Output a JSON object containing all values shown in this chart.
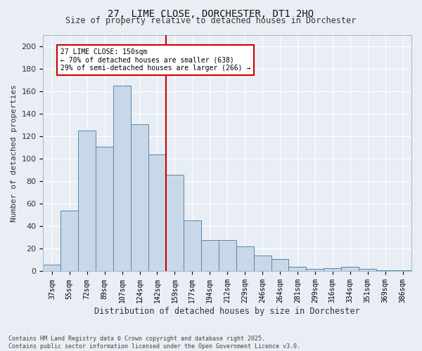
{
  "title": "27, LIME CLOSE, DORCHESTER, DT1 2HQ",
  "subtitle": "Size of property relative to detached houses in Dorchester",
  "xlabel": "Distribution of detached houses by size in Dorchester",
  "ylabel": "Number of detached properties",
  "categories": [
    "37sqm",
    "55sqm",
    "72sqm",
    "89sqm",
    "107sqm",
    "124sqm",
    "142sqm",
    "159sqm",
    "177sqm",
    "194sqm",
    "212sqm",
    "229sqm",
    "246sqm",
    "264sqm",
    "281sqm",
    "299sqm",
    "316sqm",
    "334sqm",
    "351sqm",
    "369sqm",
    "386sqm"
  ],
  "values": [
    6,
    54,
    125,
    111,
    165,
    131,
    104,
    86,
    45,
    28,
    28,
    22,
    14,
    11,
    4,
    2,
    3,
    4,
    2,
    1,
    1
  ],
  "bar_color": "#c8d8e8",
  "bar_edge_color": "#5588aa",
  "vline_index": 7,
  "vline_color": "#cc0000",
  "annotation_text": "27 LIME CLOSE: 150sqm\n← 70% of detached houses are smaller (638)\n29% of semi-detached houses are larger (266) →",
  "annotation_box_color": "#ffffff",
  "annotation_box_edge": "#cc0000",
  "bg_color": "#e8eef4",
  "grid_color": "#ffffff",
  "footnote": "Contains HM Land Registry data © Crown copyright and database right 2025.\nContains public sector information licensed under the Open Government Licence v3.0.",
  "ylim": [
    0,
    210
  ],
  "yticks": [
    0,
    20,
    40,
    60,
    80,
    100,
    120,
    140,
    160,
    180,
    200
  ]
}
